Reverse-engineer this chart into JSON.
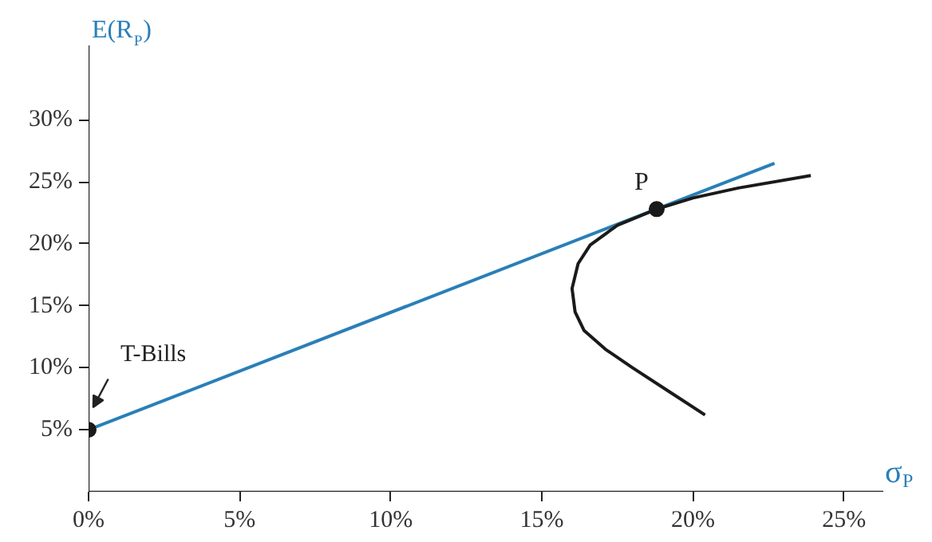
{
  "chart_data": {
    "type": "line",
    "xlabel": "σ$_{P}$",
    "ylabel": "E(R$_{P}$)",
    "xlim": [
      0,
      26.3
    ],
    "ylim": [
      0,
      36
    ],
    "xticks": [
      {
        "value": 0,
        "label": "0%"
      },
      {
        "value": 5,
        "label": "5%"
      },
      {
        "value": 10,
        "label": "10%"
      },
      {
        "value": 15,
        "label": "15%"
      },
      {
        "value": 20,
        "label": "20%"
      },
      {
        "value": 25,
        "label": "25%"
      }
    ],
    "yticks": [
      {
        "value": 5,
        "label": "5%"
      },
      {
        "value": 10,
        "label": "10%"
      },
      {
        "value": 15,
        "label": "15%"
      },
      {
        "value": 20,
        "label": "20%"
      },
      {
        "value": 25,
        "label": "25%"
      },
      {
        "value": 30,
        "label": "30%"
      }
    ],
    "grid": false,
    "series": [
      {
        "color": "#2a7fb8",
        "x": [
          0,
          22.7
        ],
        "values": [
          5,
          26.5
        ]
      },
      {
        "color": "#1a1a1a",
        "x": [
          20.4,
          19.2,
          18.0,
          17.1,
          16.4,
          16.1,
          16.0,
          16.2,
          16.6,
          17.5,
          18.8,
          20.0,
          21.5,
          23.9
        ],
        "values": [
          6.2,
          8.1,
          10.0,
          11.5,
          13.0,
          14.5,
          16.4,
          18.4,
          19.9,
          21.5,
          22.8,
          23.7,
          24.5,
          25.5
        ]
      },
      {
        "type": "scatter",
        "color": "#1a1a1a",
        "x": [
          0,
          18.8
        ],
        "values": [
          5,
          22.8
        ]
      }
    ],
    "annotations": [
      {
        "text": "T-Bills",
        "x": 0,
        "y": 5
      },
      {
        "text": "P",
        "x": 18.8,
        "y": 22.8
      }
    ]
  }
}
